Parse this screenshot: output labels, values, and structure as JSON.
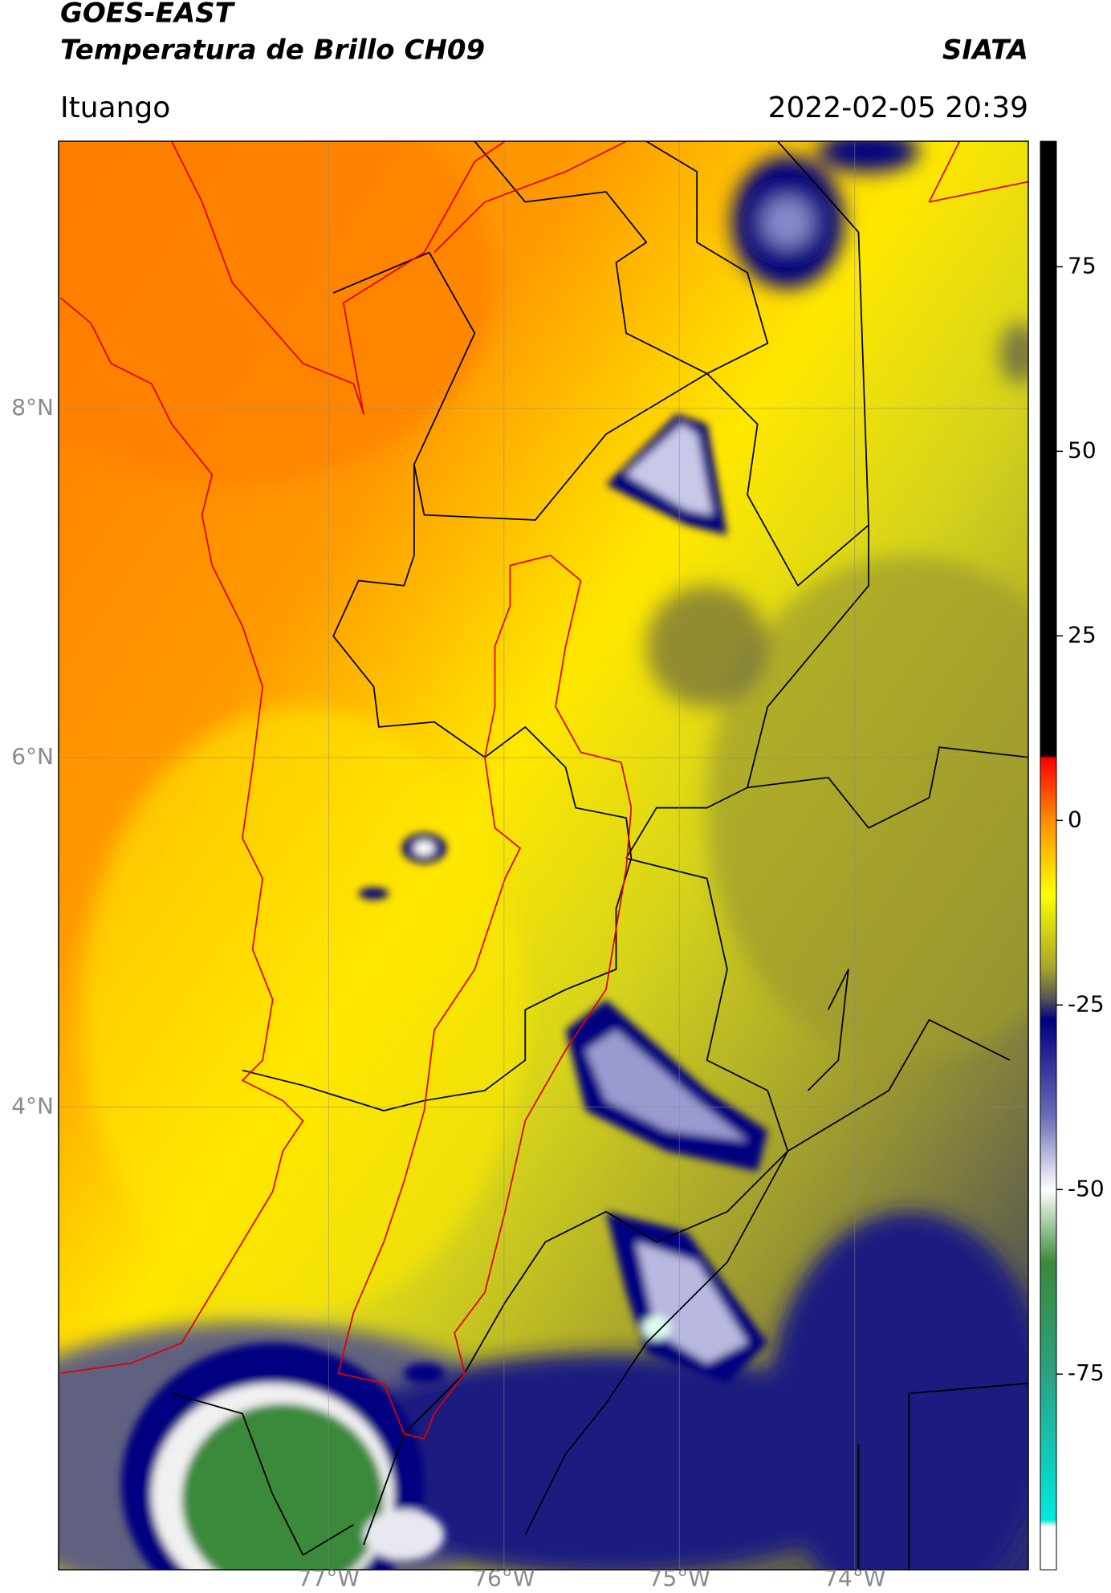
{
  "header": {
    "title": "GOES-EAST",
    "subtitle": "Temperatura de Brillo CH09",
    "source": "SIATA",
    "region": "Ituango",
    "datetime": "2022-02-05 20:39"
  },
  "map": {
    "latlim": [
      1.35,
      9.53
    ],
    "lonlim": [
      -78.54,
      -73.01
    ],
    "grid": true,
    "latticks": [
      {
        "value": 8,
        "label": "8°N"
      },
      {
        "value": 6,
        "label": "6°N"
      },
      {
        "value": 4,
        "label": "4°N"
      }
    ],
    "lonticks": [
      {
        "value": -77,
        "label": "77°W"
      },
      {
        "value": -76,
        "label": "76°W"
      },
      {
        "value": -75,
        "label": "75°W"
      },
      {
        "value": -74,
        "label": "74°W"
      }
    ]
  },
  "colorbar": {
    "lim": [
      -101.5,
      92
    ],
    "ticks": [
      -75,
      -50,
      -25,
      0,
      25,
      50,
      75
    ]
  }
}
